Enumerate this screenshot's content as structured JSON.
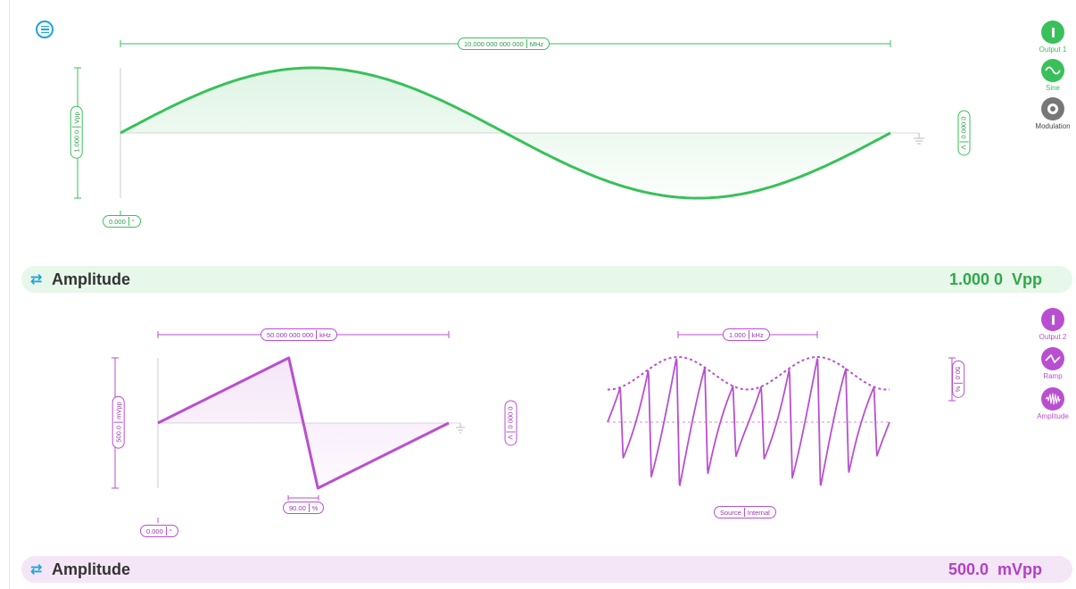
{
  "colors": {
    "output1": "#39c05a",
    "output2": "#b94fd0",
    "accent": "#1fa2e0",
    "modulation": "#777777",
    "amp1_bar": "#e7f7e9",
    "amp2_bar": "#f4e6f7"
  },
  "output1": {
    "frequency": {
      "value": "10.000 000 000 000",
      "unit": "MHz"
    },
    "amplitude_axis": {
      "value": "1.000 0",
      "unit": "Vpp"
    },
    "offset": {
      "value": "0.000 0",
      "unit": "V"
    },
    "phase": {
      "value": "0.000",
      "unit": "°"
    },
    "buttons": {
      "output": {
        "label": "Output 1",
        "icon": "power-icon"
      },
      "waveform": {
        "label": "Sine",
        "icon": "sine-wave-icon"
      },
      "modulation": {
        "label": "Modulation",
        "icon": "ring-icon"
      }
    },
    "amplitude_bar": {
      "label": "Amplitude",
      "value": "1.000 0  Vpp",
      "icon": "swap-arrows-icon"
    }
  },
  "output2": {
    "frequency": {
      "value": "50.000 000 000",
      "unit": "kHz"
    },
    "amplitude_axis": {
      "value": "500.0",
      "unit": "mVpp"
    },
    "offset": {
      "value": "0.000 0",
      "unit": "V"
    },
    "phase": {
      "value": "0.000",
      "unit": "°"
    },
    "symmetry": {
      "value": "90.00",
      "unit": "%"
    },
    "modulation_frequency": {
      "value": "1.000",
      "unit": "kHz"
    },
    "modulation_depth": {
      "value": "50.0",
      "unit": "%"
    },
    "modulation_source": {
      "label": "Source",
      "value": "Internal"
    },
    "buttons": {
      "output": {
        "label": "Output 2",
        "icon": "power-icon"
      },
      "waveform": {
        "label": "Ramp",
        "icon": "ramp-wave-icon"
      },
      "modulation": {
        "label": "Amplitude",
        "icon": "am-wave-icon"
      }
    },
    "amplitude_bar": {
      "label": "Amplitude",
      "value": "500.0  mVpp",
      "icon": "swap-arrows-icon"
    }
  }
}
